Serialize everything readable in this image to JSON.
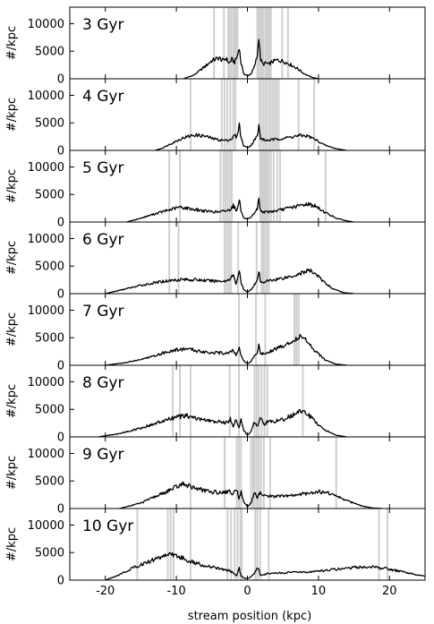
{
  "chart_data": {
    "type": "line",
    "xlabel": "stream position (kpc)",
    "ylabel": "#/kpc",
    "xlim": [
      -25,
      25
    ],
    "ylim": [
      0,
      13000
    ],
    "xticks": [
      -20,
      -10,
      0,
      10,
      20
    ],
    "yticks": [
      0,
      5000,
      10000
    ],
    "grid": false,
    "panels": [
      {
        "label": "3 Gyr",
        "bands": [
          -4.7,
          -3.3,
          -2.7,
          -2.5,
          -2.3,
          -2.0,
          -1.8,
          -1.6,
          -1.4,
          1.4,
          1.6,
          1.8,
          2.0,
          2.2,
          2.5,
          2.7,
          2.9,
          3.1,
          3.3,
          4.9,
          5.7
        ],
        "profile": [
          [
            -9,
            0
          ],
          [
            -7.5,
            700
          ],
          [
            -6,
            2200
          ],
          [
            -5,
            3300
          ],
          [
            -4,
            3800
          ],
          [
            -3.5,
            3300
          ],
          [
            -3,
            3700
          ],
          [
            -2.6,
            2800
          ],
          [
            -2.2,
            3500
          ],
          [
            -1.8,
            3000
          ],
          [
            -1.4,
            4200
          ],
          [
            -1.15,
            5700
          ],
          [
            -0.9,
            2800
          ],
          [
            -0.5,
            900
          ],
          [
            0,
            500
          ],
          [
            0.5,
            900
          ],
          [
            1,
            2200
          ],
          [
            1.4,
            4300
          ],
          [
            1.6,
            7500
          ],
          [
            1.85,
            3500
          ],
          [
            2.2,
            2600
          ],
          [
            2.6,
            2900
          ],
          [
            3,
            2600
          ],
          [
            3.5,
            3100
          ],
          [
            4.2,
            3400
          ],
          [
            5,
            3200
          ],
          [
            6,
            2600
          ],
          [
            7,
            1900
          ],
          [
            8,
            900
          ],
          [
            9,
            300
          ],
          [
            10,
            0
          ]
        ]
      },
      {
        "label": "4 Gyr",
        "bands": [
          -8,
          -3.6,
          -3.2,
          -2.8,
          -2.4,
          -2.0,
          -1.7,
          1.7,
          2.0,
          2.3,
          2.6,
          2.9,
          3.2,
          3.5,
          3.8,
          4.1,
          4.4,
          7.2,
          9.4
        ],
        "profile": [
          [
            -13,
            0
          ],
          [
            -12,
            400
          ],
          [
            -10.5,
            1400
          ],
          [
            -9,
            2300
          ],
          [
            -7.5,
            2800
          ],
          [
            -6,
            2600
          ],
          [
            -5,
            2200
          ],
          [
            -4,
            1900
          ],
          [
            -3,
            1800
          ],
          [
            -2.2,
            2100
          ],
          [
            -1.8,
            2800
          ],
          [
            -1.5,
            2300
          ],
          [
            -1.15,
            4800
          ],
          [
            -0.9,
            2300
          ],
          [
            -0.5,
            800
          ],
          [
            0,
            500
          ],
          [
            0.5,
            900
          ],
          [
            1,
            1900
          ],
          [
            1.4,
            2600
          ],
          [
            1.6,
            4500
          ],
          [
            1.85,
            2200
          ],
          [
            2.5,
            1800
          ],
          [
            4,
            2000
          ],
          [
            6,
            2400
          ],
          [
            7.5,
            2700
          ],
          [
            8.5,
            2600
          ],
          [
            9.5,
            2000
          ],
          [
            11,
            900
          ],
          [
            12.5,
            300
          ],
          [
            14,
            0
          ]
        ]
      },
      {
        "label": "5 Gyr",
        "bands": [
          -11,
          -9.5,
          -3.8,
          -3.4,
          -3.1,
          -2.8,
          -2.5,
          -2.2,
          1.8,
          2.0,
          2.2,
          2.4,
          2.6,
          2.8,
          3.0,
          3.3,
          3.7,
          4.2,
          4.6,
          11
        ],
        "profile": [
          [
            -17,
            0
          ],
          [
            -15,
            700
          ],
          [
            -13,
            1500
          ],
          [
            -11,
            2200
          ],
          [
            -9.5,
            2700
          ],
          [
            -8,
            2400
          ],
          [
            -6,
            2000
          ],
          [
            -4,
            1800
          ],
          [
            -2.5,
            2200
          ],
          [
            -2,
            3000
          ],
          [
            -1.5,
            2000
          ],
          [
            -1.15,
            4300
          ],
          [
            -0.9,
            2000
          ],
          [
            -0.5,
            700
          ],
          [
            0,
            500
          ],
          [
            0.5,
            800
          ],
          [
            1,
            1700
          ],
          [
            1.4,
            2400
          ],
          [
            1.6,
            4200
          ],
          [
            1.85,
            2000
          ],
          [
            2.5,
            1800
          ],
          [
            4,
            2000
          ],
          [
            6,
            2600
          ],
          [
            7.5,
            3000
          ],
          [
            8.5,
            3300
          ],
          [
            9.5,
            2900
          ],
          [
            11,
            1700
          ],
          [
            12.5,
            700
          ],
          [
            14,
            200
          ],
          [
            15,
            0
          ]
        ]
      },
      {
        "label": "6 Gyr",
        "bands": [
          -11,
          -9.7,
          -3.2,
          -2.9,
          -2.6,
          -2.3,
          -1.3,
          1.3,
          2.0,
          2.2,
          2.4,
          2.7,
          3.0
        ],
        "profile": [
          [
            -20,
            0
          ],
          [
            -18,
            600
          ],
          [
            -15,
            1500
          ],
          [
            -12,
            2200
          ],
          [
            -9.5,
            2600
          ],
          [
            -7,
            2500
          ],
          [
            -5,
            2300
          ],
          [
            -3,
            2300
          ],
          [
            -2.5,
            2700
          ],
          [
            -2,
            3300
          ],
          [
            -1.6,
            1800
          ],
          [
            -1.15,
            4200
          ],
          [
            -0.9,
            2000
          ],
          [
            -0.5,
            700
          ],
          [
            0,
            300
          ],
          [
            0.5,
            700
          ],
          [
            1,
            1700
          ],
          [
            1.4,
            2300
          ],
          [
            1.6,
            4100
          ],
          [
            1.85,
            2000
          ],
          [
            2.5,
            2200
          ],
          [
            4,
            2600
          ],
          [
            6,
            3100
          ],
          [
            7.5,
            3700
          ],
          [
            8.5,
            4200
          ],
          [
            9.5,
            3800
          ],
          [
            10.5,
            2400
          ],
          [
            12,
            900
          ],
          [
            13.5,
            200
          ],
          [
            15,
            0
          ]
        ]
      },
      {
        "label": "7 Gyr",
        "bands": [
          -1.2,
          1.2,
          2.5,
          6.6,
          6.9,
          7.2
        ],
        "profile": [
          [
            -20,
            0
          ],
          [
            -17,
            500
          ],
          [
            -14,
            1400
          ],
          [
            -12,
            2200
          ],
          [
            -10,
            2800
          ],
          [
            -8.5,
            3000
          ],
          [
            -7,
            2600
          ],
          [
            -5,
            2300
          ],
          [
            -3,
            2200
          ],
          [
            -2,
            2700
          ],
          [
            -1.6,
            1800
          ],
          [
            -1.15,
            3600
          ],
          [
            -0.9,
            1700
          ],
          [
            -0.5,
            800
          ],
          [
            0,
            300
          ],
          [
            0.5,
            700
          ],
          [
            1,
            1800
          ],
          [
            1.4,
            2400
          ],
          [
            1.6,
            3800
          ],
          [
            1.85,
            2000
          ],
          [
            3,
            2500
          ],
          [
            5,
            3500
          ],
          [
            6.5,
            4500
          ],
          [
            7.5,
            5300
          ],
          [
            8.3,
            4600
          ],
          [
            9.5,
            2700
          ],
          [
            11,
            900
          ],
          [
            12.5,
            200
          ],
          [
            14,
            0
          ]
        ]
      },
      {
        "label": "8 Gyr",
        "bands": [
          -10.5,
          -9.5,
          -8,
          -2.5,
          -1.2,
          1.0,
          1.3,
          1.6,
          2.0,
          2.4,
          2.8,
          7.8
        ],
        "profile": [
          [
            -21,
            0
          ],
          [
            -18,
            600
          ],
          [
            -15,
            1600
          ],
          [
            -12,
            2800
          ],
          [
            -10,
            3600
          ],
          [
            -8.5,
            3800
          ],
          [
            -7,
            3300
          ],
          [
            -5,
            2800
          ],
          [
            -3,
            2600
          ],
          [
            -2.4,
            3200
          ],
          [
            -2,
            2000
          ],
          [
            -1.6,
            3300
          ],
          [
            -1.2,
            1600
          ],
          [
            -0.9,
            3000
          ],
          [
            -0.5,
            1200
          ],
          [
            0,
            300
          ],
          [
            0.5,
            900
          ],
          [
            1,
            2800
          ],
          [
            1.4,
            2000
          ],
          [
            1.8,
            3300
          ],
          [
            2.4,
            2400
          ],
          [
            3,
            2800
          ],
          [
            4.5,
            2900
          ],
          [
            6,
            3700
          ],
          [
            7.5,
            4700
          ],
          [
            8.3,
            4300
          ],
          [
            9.5,
            2800
          ],
          [
            11,
            1200
          ],
          [
            12.5,
            300
          ],
          [
            14,
            0
          ]
        ]
      },
      {
        "label": "9 Gyr",
        "bands": [
          -8,
          -3.2,
          -1.5,
          -1.2,
          -0.9,
          0.5,
          0.8,
          1.0,
          1.3,
          1.6,
          1.9,
          2.3,
          3.2,
          12.5
        ],
        "profile": [
          [
            -18,
            0
          ],
          [
            -15,
            1000
          ],
          [
            -12,
            2700
          ],
          [
            -10,
            3900
          ],
          [
            -9,
            4500
          ],
          [
            -8,
            4000
          ],
          [
            -6,
            3200
          ],
          [
            -4,
            2900
          ],
          [
            -2.5,
            3100
          ],
          [
            -2,
            2600
          ],
          [
            -1.5,
            3600
          ],
          [
            -1.2,
            1800
          ],
          [
            -0.9,
            3000
          ],
          [
            -0.5,
            1200
          ],
          [
            0,
            300
          ],
          [
            0.5,
            1000
          ],
          [
            1,
            2800
          ],
          [
            1.4,
            2000
          ],
          [
            1.8,
            3000
          ],
          [
            2.5,
            2300
          ],
          [
            4,
            2200
          ],
          [
            6,
            2300
          ],
          [
            8,
            2700
          ],
          [
            10,
            3100
          ],
          [
            11.5,
            2800
          ],
          [
            13,
            2000
          ],
          [
            14.5,
            1200
          ],
          [
            16,
            500
          ],
          [
            17.5,
            100
          ],
          [
            19,
            0
          ]
        ]
      },
      {
        "label": "10 Gyr",
        "bands": [
          -15.5,
          -11.2,
          -10.8,
          -10.4,
          -8,
          -2.8,
          -2.3,
          -1.8,
          -1.4,
          -1.0,
          -0.8,
          1.1,
          1.4,
          1.8,
          3.0,
          18.5,
          19.7
        ],
        "profile": [
          [
            -20,
            0
          ],
          [
            -18,
            1000
          ],
          [
            -16,
            2300
          ],
          [
            -13,
            3800
          ],
          [
            -11,
            4800
          ],
          [
            -10,
            4400
          ],
          [
            -8,
            3400
          ],
          [
            -6,
            2600
          ],
          [
            -4,
            2100
          ],
          [
            -2.5,
            1700
          ],
          [
            -2,
            1300
          ],
          [
            -1.5,
            800
          ],
          [
            -1.15,
            2200
          ],
          [
            -0.9,
            800
          ],
          [
            -0.5,
            400
          ],
          [
            0,
            300
          ],
          [
            0.5,
            600
          ],
          [
            1.1,
            1500
          ],
          [
            1.5,
            2300
          ],
          [
            1.8,
            900
          ],
          [
            3,
            1200
          ],
          [
            6,
            1400
          ],
          [
            9,
            1500
          ],
          [
            12,
            1900
          ],
          [
            15,
            2300
          ],
          [
            17,
            2400
          ],
          [
            19,
            2200
          ],
          [
            21,
            1700
          ],
          [
            23,
            1200
          ],
          [
            25,
            700
          ]
        ]
      }
    ]
  }
}
